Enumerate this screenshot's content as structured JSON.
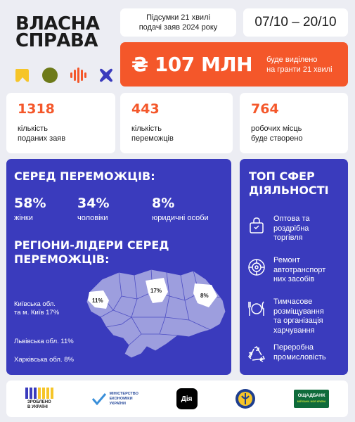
{
  "brand": {
    "line1": "ВЛАСНА",
    "line2": "СПРАВА"
  },
  "header": {
    "subtitle_line1": "Підсумки 21 хвилі",
    "subtitle_line2": "подачі заяв 2024 року",
    "dates": "07/10 – 20/10",
    "amount": "₴ 107 МЛН",
    "amount_note_line1": "буде виділено",
    "amount_note_line2": "на гранти 21 хвилі"
  },
  "icons": [
    "yellow-blob-icon",
    "olive-circle-icon",
    "orange-wave-icon",
    "blue-cross-icon"
  ],
  "stats": [
    {
      "value": "1318",
      "label_line1": "кількість",
      "label_line2": "поданих заяв"
    },
    {
      "value": "443",
      "label_line1": "кількість",
      "label_line2": "переможців"
    },
    {
      "value": "764",
      "label_line1": "робочих місць",
      "label_line2": "буде створено"
    }
  ],
  "winners": {
    "title": "СЕРЕД ПЕРЕМОЖЦІВ:",
    "items": [
      {
        "percent": "58%",
        "label": "жінки"
      },
      {
        "percent": "34%",
        "label": "чоловіки"
      },
      {
        "percent": "8%",
        "label": "юридичні особи"
      }
    ]
  },
  "regions": {
    "title_line1": "РЕГІОНИ-ЛІДЕРИ СЕРЕД",
    "title_line2": "ПЕРЕМОЖЦІВ:",
    "items": [
      {
        "line1": "Київська обл.",
        "line2": "та м. Київ 17%"
      },
      {
        "line1": "Львівська обл. 11%",
        "line2": ""
      },
      {
        "line1": "Харківська обл.  8%",
        "line2": ""
      }
    ],
    "map_labels": {
      "lviv": "11%",
      "kyiv": "17%",
      "kharkiv": "8%"
    }
  },
  "spheres": {
    "title_line1": "ТОП СФЕР",
    "title_line2": "ДІЯЛЬНОСТІ",
    "items": [
      {
        "icon": "shopping-bag-icon",
        "lines": [
          "Оптова та",
          "роздрібна",
          "торгівля"
        ]
      },
      {
        "icon": "wheel-icon",
        "lines": [
          "Ремонт",
          "автотранспорт",
          "них засобів"
        ]
      },
      {
        "icon": "plate-cutlery-icon",
        "lines": [
          "Тимчасове",
          "розміщування",
          "та організація",
          "харчування"
        ]
      },
      {
        "icon": "recycle-icon",
        "lines": [
          "Переробна",
          "промисловість"
        ]
      }
    ]
  },
  "footer": {
    "logo1_line1": "ЗРОБЛЕНО",
    "logo1_line2": "В УКРАЇНІ",
    "logo2_line1": "МІНІСТЕРСТВО",
    "logo2_line2": "ЕКОНОМІКИ",
    "logo2_line3": "УКРАЇНИ",
    "logo3": "Дія",
    "logo5_line1": "ОЩАДБАНК",
    "logo5_line2": "МІЙ БАНК. МОЯ КРАЇНА"
  },
  "colors": {
    "blue": "#3a3bbd",
    "orange": "#f4572a",
    "background": "#ecedf3",
    "map_fill": "#9d9ede",
    "map_highlight": "#ffffff"
  }
}
